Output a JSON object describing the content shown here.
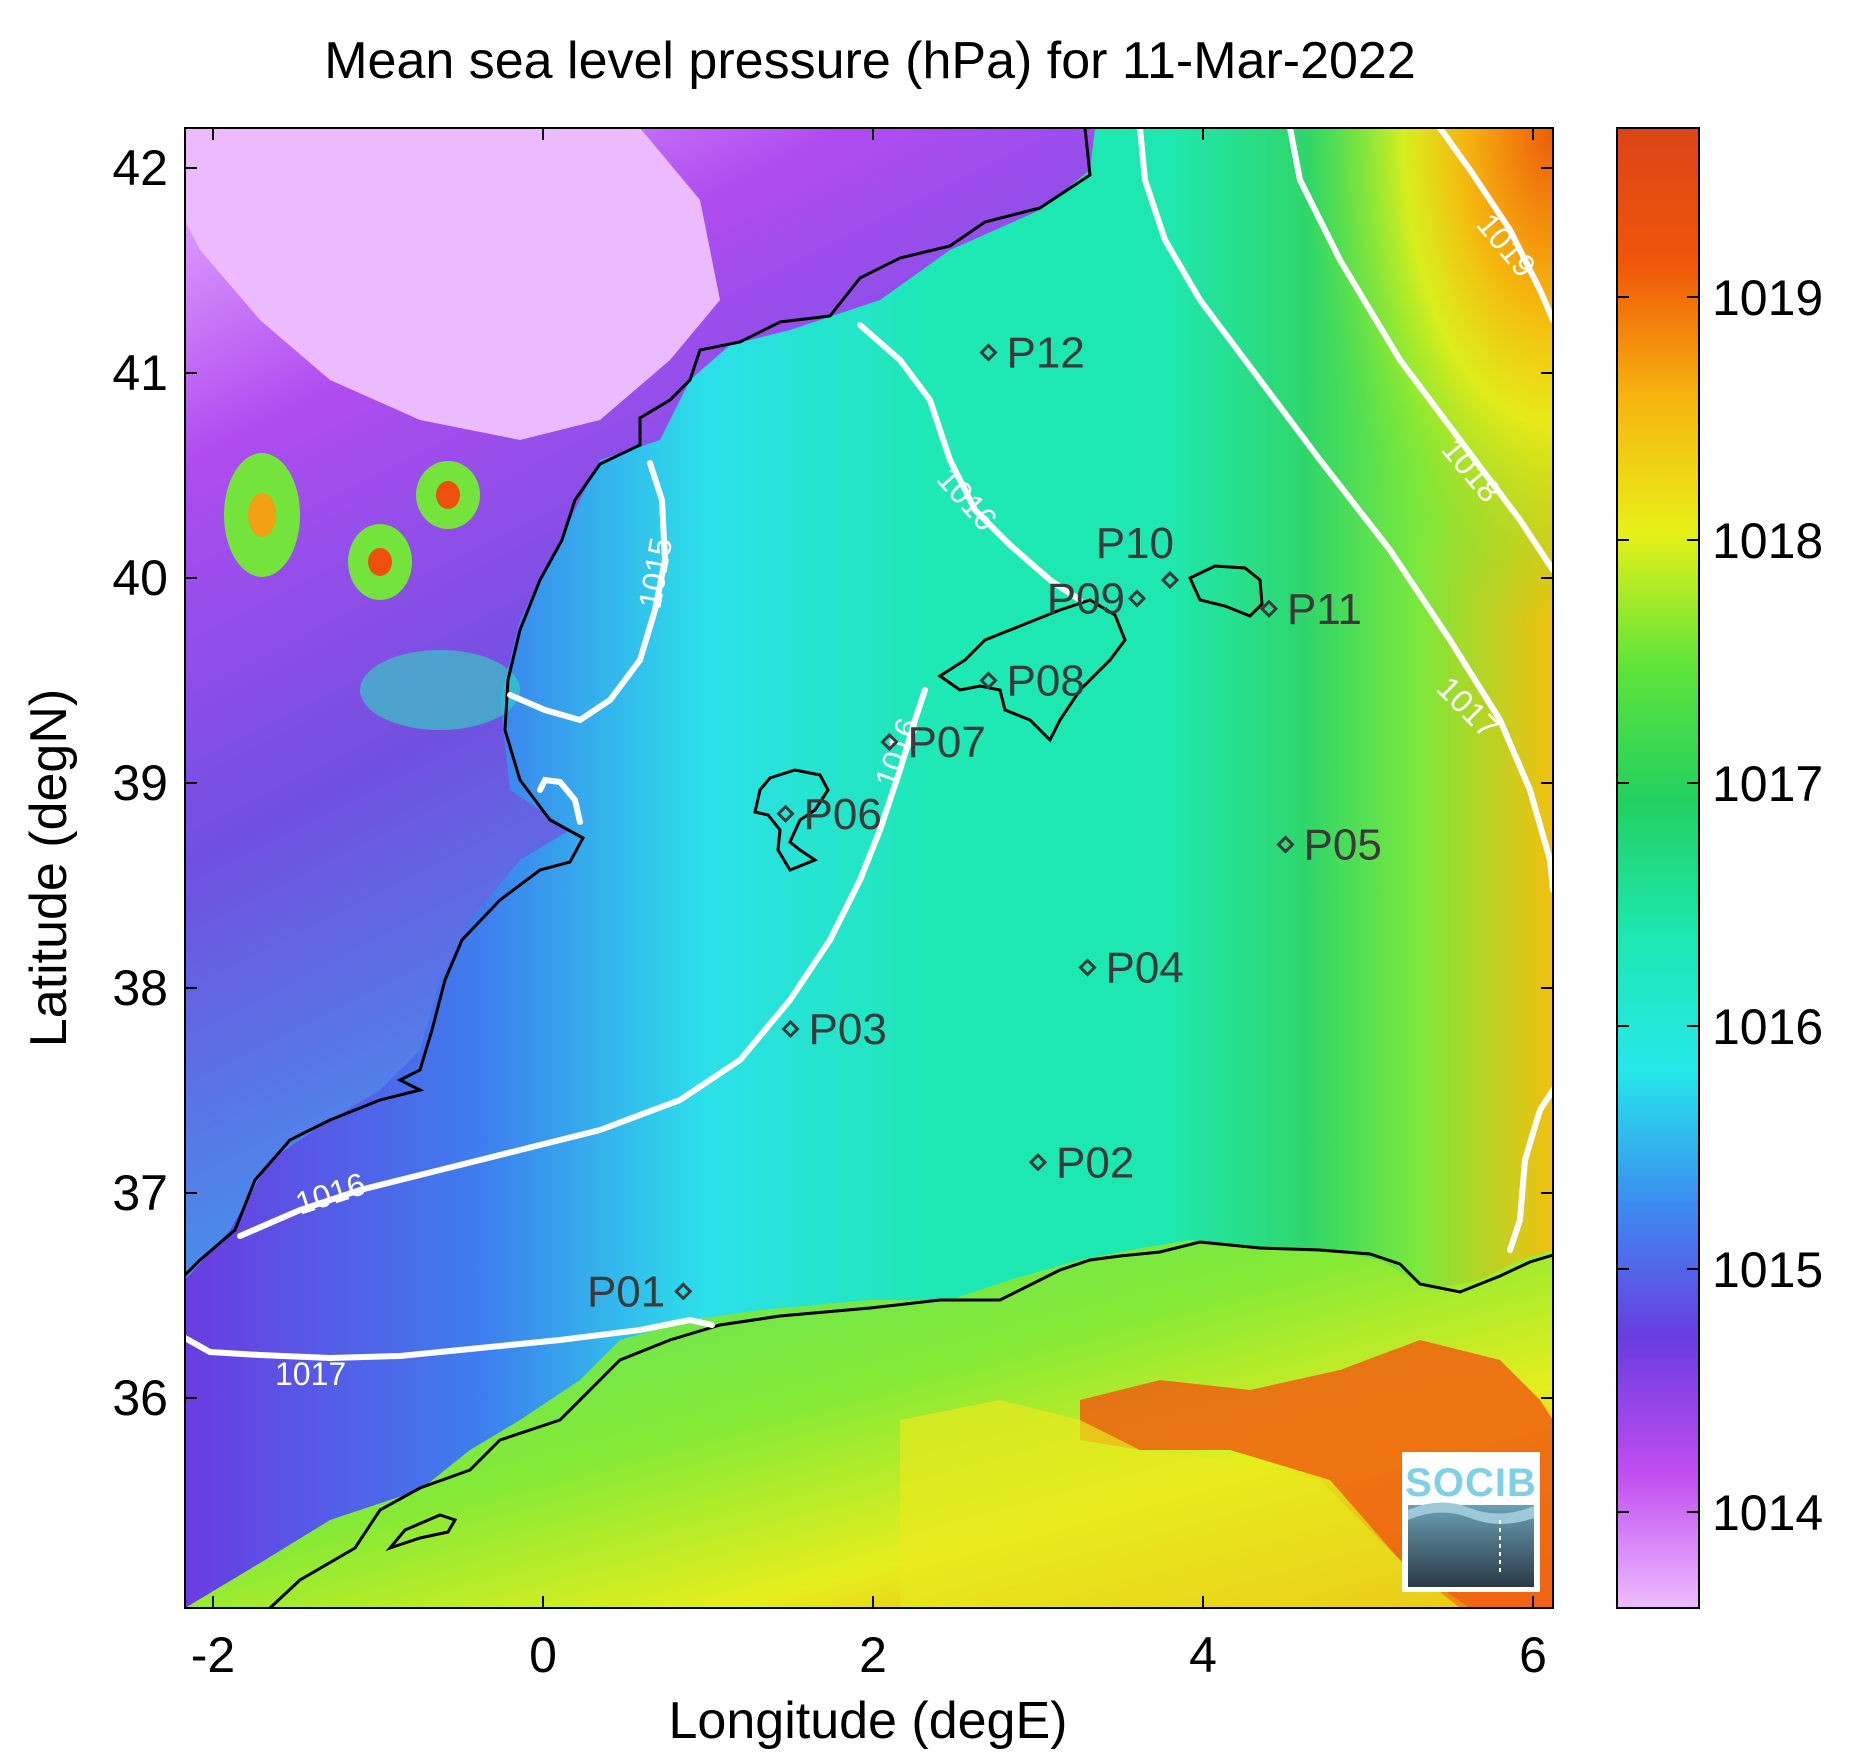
{
  "title": "Mean sea level pressure (hPa) for 11-Mar-2022",
  "xlabel": "Longitude (degE)",
  "ylabel": "Latitude (degN)",
  "x_ticks": [
    "-2",
    "0",
    "2",
    "4",
    "6"
  ],
  "y_ticks": [
    "42",
    "41",
    "40",
    "39",
    "38",
    "37",
    "36"
  ],
  "colorbar": {
    "ticks": [
      "1019",
      "1018",
      "1017",
      "1016",
      "1015",
      "1014"
    ],
    "range": [
      1013.6,
      1019.7
    ],
    "colormap": [
      "#eebcff",
      "#c04ef0",
      "#6a3ce0",
      "#3c8cf0",
      "#25e8ea",
      "#1de8b0",
      "#22d060",
      "#5ee43a",
      "#e8f018",
      "#f6b40e",
      "#f0560a",
      "#dc4418"
    ]
  },
  "contour_levels": [
    "1015",
    "1016",
    "1016",
    "1016",
    "1017",
    "1017",
    "1018",
    "1019"
  ],
  "stations": [
    {
      "id": "P01",
      "lon": 0.85,
      "lat": 36.52
    },
    {
      "id": "P02",
      "lon": 3.0,
      "lat": 37.15
    },
    {
      "id": "P03",
      "lon": 1.5,
      "lat": 37.8
    },
    {
      "id": "P04",
      "lon": 3.3,
      "lat": 38.1
    },
    {
      "id": "P05",
      "lon": 4.5,
      "lat": 38.7
    },
    {
      "id": "P06",
      "lon": 1.47,
      "lat": 38.85
    },
    {
      "id": "P07",
      "lon": 2.1,
      "lat": 39.2
    },
    {
      "id": "P08",
      "lon": 2.7,
      "lat": 39.5
    },
    {
      "id": "P09",
      "lon": 3.6,
      "lat": 39.9
    },
    {
      "id": "P10",
      "lon": 3.8,
      "lat": 39.99
    },
    {
      "id": "P11",
      "lon": 4.4,
      "lat": 39.85
    },
    {
      "id": "P12",
      "lon": 2.7,
      "lat": 41.1
    }
  ],
  "logo": "SOCIB",
  "colors": {
    "contour": "#ffffff",
    "coastline": "#000000",
    "station_marker": "#3a3a3a"
  }
}
